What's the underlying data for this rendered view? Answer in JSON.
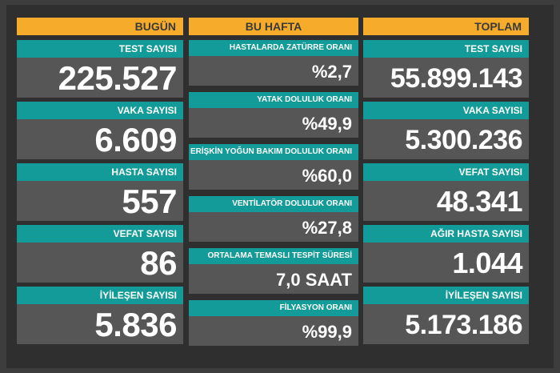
{
  "columns": {
    "today": {
      "header": "BUGÜN",
      "cards": [
        {
          "label": "TEST SAYISI",
          "value": "225.527"
        },
        {
          "label": "VAKA SAYISI",
          "value": "6.609"
        },
        {
          "label": "HASTA SAYISI",
          "value": "557"
        },
        {
          "label": "VEFAT SAYISI",
          "value": "86"
        },
        {
          "label": "İYİLEŞEN SAYISI",
          "value": "5.836"
        }
      ]
    },
    "week": {
      "header": "BU HAFTA",
      "cards": [
        {
          "label": "HASTALARDA ZATÜRRE ORANI",
          "value": "%2,7"
        },
        {
          "label": "YATAK DOLULUK ORANI",
          "value": "%49,9"
        },
        {
          "label": "ERİŞKİN YOĞUN BAKIM DOLULUK ORANI",
          "value": "%60,0"
        },
        {
          "label": "VENTİLATÖR DOLULUK ORANI",
          "value": "%27,8"
        },
        {
          "label": "ORTALAMA TEMASLI TESPİT SÜRESİ",
          "value": "7,0 SAAT"
        },
        {
          "label": "FİLYASYON ORANI",
          "value": "%99,9"
        }
      ]
    },
    "total": {
      "header": "TOPLAM",
      "cards": [
        {
          "label": "TEST SAYISI",
          "value": "55.899.143"
        },
        {
          "label": "VAKA SAYISI",
          "value": "5.300.236"
        },
        {
          "label": "VEFAT SAYISI",
          "value": "48.341"
        },
        {
          "label": "AĞIR HASTA SAYISI",
          "value": "1.044"
        },
        {
          "label": "İYİLEŞEN SAYISI",
          "value": "5.173.186"
        }
      ]
    }
  },
  "colors": {
    "header": "#f6ac2a",
    "label_band": "#129b98",
    "value_panel": "#565656",
    "background": "#2f2f2f"
  }
}
